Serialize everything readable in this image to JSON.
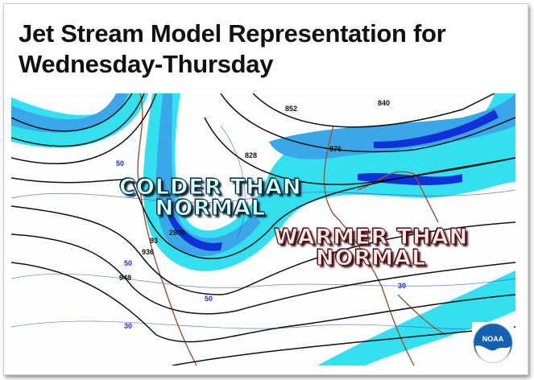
{
  "title": {
    "line1": "Jet Stream Model Representation for",
    "line2": "Wednesday-Thursday"
  },
  "map": {
    "annotations": {
      "cold": [
        "COLDER THAN",
        "NORMAL"
      ],
      "warm": [
        "WARMER THAN",
        "NORMAL"
      ]
    },
    "contour_labels": [
      "852",
      "840",
      "876",
      "828",
      "2800",
      "93",
      "936",
      "948"
    ],
    "isotach_labels": [
      "50",
      "50",
      "50",
      "30",
      "30"
    ],
    "colors": {
      "jet_light": "#33e0f0",
      "jet_mid": "#3aa8e8",
      "jet_core": "#1030d8",
      "land_border": "#a0522d",
      "height_contour": "#111111",
      "isotherm": "#4040c0"
    },
    "logo": {
      "text": "NOAA",
      "color": "#1560b0"
    }
  }
}
